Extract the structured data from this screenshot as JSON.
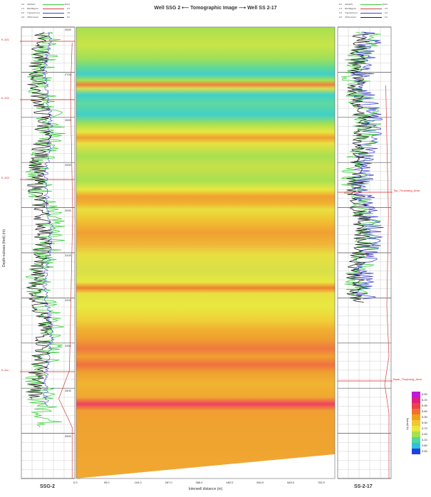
{
  "title": "Well SSG 2  ⟵  Tomographic Image  ⟶  Well SS 2-17",
  "left_well": {
    "name": "SSG-2",
    "legend": [
      {
        "min": "0.0",
        "name": "GR(API)",
        "max": "200.0",
        "color": "#3ccf3c"
      },
      {
        "min": "1.5",
        "name": "RHOB(g/cc)",
        "max": "2.5",
        "color": "#d04040"
      },
      {
        "min": "0.0",
        "name": "Trans(ohmm)",
        "max": "40",
        "color": "#4040d0"
      },
      {
        "min": "0.0",
        "name": "VP(Km/sec)",
        "max": "6.0",
        "color": "#202020"
      }
    ],
    "depth_ticks": [
      "2600",
      "2700",
      "2800",
      "2900",
      "3000",
      "3100",
      "3200",
      "3300",
      "3400",
      "3500"
    ],
    "depth_axis_label": "Depth-subsea (feet) (m)",
    "markers": [
      "K-101",
      "K-102",
      "K-103",
      "K-1cc"
    ]
  },
  "right_well": {
    "name": "SS-2-17",
    "legend": [
      {
        "min": "0.0",
        "name": "GR(API)",
        "max": "200.0",
        "color": "#3ccf3c"
      },
      {
        "min": "1.5",
        "name": "RHOB(g/cc)",
        "max": "2.5",
        "color": "#d04040"
      },
      {
        "min": "0.0",
        "name": "Trans(ohmm)",
        "max": "4.0",
        "color": "#4040d0"
      },
      {
        "min": "0.0",
        "name": "VP(Km/sec)",
        "max": "6.0",
        "color": "#202020"
      }
    ],
    "markers": [
      "Top_Thuyhang_Area",
      "Base_Thuyhang_Area"
    ]
  },
  "x_axis": {
    "label": "Interwell distance (m)",
    "ticks": [
      "0.0",
      "95.0",
      "194.0",
      "287.0",
      "386.0",
      "482.0",
      "584.0",
      "683.0",
      "782.0"
    ]
  },
  "colorbar": {
    "title": "Vp (km/s)",
    "values": [
      "6.50",
      "6.20",
      "5.90",
      "5.60",
      "5.30",
      "5.00",
      "4.70",
      "4.40",
      "4.10",
      "3.80",
      "3.50"
    ],
    "colors": [
      "#c01ad6",
      "#e0207a",
      "#f0404a",
      "#f07030",
      "#f0a020",
      "#f0c830",
      "#e8e840",
      "#a8e050",
      "#50d8a0",
      "#30c0e0",
      "#2040e0"
    ]
  }
}
